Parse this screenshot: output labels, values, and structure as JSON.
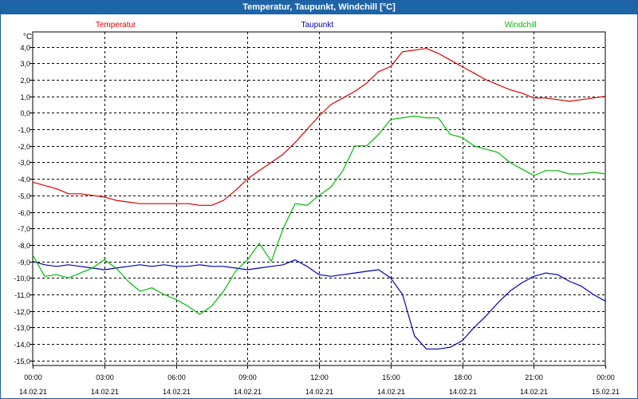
{
  "window": {
    "title": "Temperatur, Taupunkt, Windchill [°C]"
  },
  "chart_data": {
    "type": "line",
    "title": "Temperatur, Taupunkt, Windchill [°C]",
    "ylabel": "°C",
    "ylim": [
      -15.3,
      4.9
    ],
    "xlim_hours": [
      0,
      24
    ],
    "y_ticks": [
      "4,0",
      "3,0",
      "2,0",
      "1,0",
      "0,0",
      "-1,0",
      "-2,0",
      "-3,0",
      "-4,0",
      "-5,0",
      "-6,0",
      "-7,0",
      "-8,0",
      "-9,0",
      "-10,0",
      "-11,0",
      "-12,0",
      "-13,0",
      "-14,0",
      "-15,0"
    ],
    "y_tick_values": [
      4,
      3,
      2,
      1,
      0,
      -1,
      -2,
      -3,
      -4,
      -5,
      -6,
      -7,
      -8,
      -9,
      -10,
      -11,
      -12,
      -13,
      -14,
      -15
    ],
    "x_ticks": [
      {
        "time": "00:00",
        "date": "14.02.21"
      },
      {
        "time": "03:00",
        "date": "14.02.21"
      },
      {
        "time": "06:00",
        "date": "14.02.21"
      },
      {
        "time": "09:00",
        "date": "14.02.21"
      },
      {
        "time": "12:00",
        "date": "14.02.21"
      },
      {
        "time": "15:00",
        "date": "14.02.21"
      },
      {
        "time": "18:00",
        "date": "14.02.21"
      },
      {
        "time": "21:00",
        "date": "14.02.21"
      },
      {
        "time": "00:00",
        "date": "15.02.21"
      }
    ],
    "grid": true,
    "series": [
      {
        "name": "Temperatur",
        "color": "#dd0000",
        "x": [
          0,
          0.5,
          1,
          1.5,
          2,
          2.5,
          3,
          3.5,
          4,
          4.5,
          5,
          5.5,
          6,
          6.5,
          7,
          7.5,
          8,
          8.5,
          9,
          9.5,
          10,
          10.5,
          11,
          11.5,
          12,
          12.5,
          13,
          13.5,
          14,
          14.5,
          15,
          15.5,
          16,
          16.5,
          17,
          17.5,
          18,
          18.5,
          19,
          19.5,
          20,
          20.5,
          21,
          21.5,
          22,
          22.5,
          23,
          23.5,
          24
        ],
        "values": [
          -4.2,
          -4.4,
          -4.6,
          -4.9,
          -4.9,
          -5.0,
          -5.1,
          -5.3,
          -5.4,
          -5.5,
          -5.5,
          -5.5,
          -5.5,
          -5.5,
          -5.6,
          -5.6,
          -5.3,
          -4.7,
          -4.0,
          -3.5,
          -3.0,
          -2.5,
          -1.8,
          -1.0,
          -0.2,
          0.5,
          0.9,
          1.3,
          1.8,
          2.5,
          2.8,
          3.7,
          3.8,
          3.9,
          3.6,
          3.2,
          2.8,
          2.4,
          2.0,
          1.7,
          1.4,
          1.2,
          0.9,
          0.9,
          0.8,
          0.7,
          0.8,
          0.9,
          1.0
        ]
      },
      {
        "name": "Taupunkt",
        "color": "#0000bb",
        "x": [
          0,
          0.5,
          1,
          1.5,
          2,
          2.5,
          3,
          3.5,
          4,
          4.5,
          5,
          5.5,
          6,
          6.5,
          7,
          7.5,
          8,
          8.5,
          9,
          9.5,
          10,
          10.5,
          11,
          11.5,
          12,
          12.5,
          13,
          13.5,
          14,
          14.5,
          15,
          15.5,
          16,
          16.5,
          17,
          17.5,
          18,
          18.5,
          19,
          19.5,
          20,
          20.5,
          21,
          21.5,
          22,
          22.5,
          23,
          23.5,
          24
        ],
        "values": [
          -9.0,
          -9.2,
          -9.3,
          -9.2,
          -9.3,
          -9.4,
          -9.5,
          -9.4,
          -9.3,
          -9.2,
          -9.3,
          -9.2,
          -9.3,
          -9.3,
          -9.2,
          -9.3,
          -9.3,
          -9.4,
          -9.5,
          -9.4,
          -9.3,
          -9.2,
          -8.9,
          -9.3,
          -9.8,
          -9.9,
          -9.8,
          -9.7,
          -9.6,
          -9.5,
          -10.0,
          -11.0,
          -13.5,
          -14.3,
          -14.3,
          -14.2,
          -13.8,
          -13.0,
          -12.3,
          -11.5,
          -10.8,
          -10.3,
          -9.9,
          -9.7,
          -9.8,
          -10.2,
          -10.5,
          -11.0,
          -11.4
        ]
      },
      {
        "name": "Windchill",
        "color": "#00bb00",
        "x": [
          0,
          0.5,
          1,
          1.5,
          2,
          2.5,
          3,
          3.5,
          4,
          4.5,
          5,
          5.5,
          6,
          6.5,
          7,
          7.5,
          8,
          8.5,
          9,
          9.5,
          10,
          10.5,
          11,
          11.5,
          12,
          12.5,
          13,
          13.5,
          14,
          14.5,
          15,
          15.5,
          16,
          16.5,
          17,
          17.5,
          18,
          18.5,
          19,
          19.5,
          20,
          20.5,
          21,
          21.5,
          22,
          22.5,
          23,
          23.5,
          24
        ],
        "values": [
          -8.6,
          -9.9,
          -9.8,
          -10.0,
          -9.7,
          -9.4,
          -8.9,
          -9.4,
          -10.2,
          -10.8,
          -10.6,
          -11.0,
          -11.3,
          -11.7,
          -12.2,
          -11.7,
          -10.8,
          -9.6,
          -8.9,
          -7.9,
          -9.0,
          -7.0,
          -5.5,
          -5.6,
          -5.0,
          -4.5,
          -3.5,
          -2.0,
          -2.0,
          -1.3,
          -0.4,
          -0.3,
          -0.2,
          -0.3,
          -0.3,
          -1.3,
          -1.5,
          -2.0,
          -2.2,
          -2.4,
          -3.0,
          -3.4,
          -3.8,
          -3.5,
          -3.5,
          -3.7,
          -3.7,
          -3.6,
          -3.7
        ]
      }
    ]
  }
}
